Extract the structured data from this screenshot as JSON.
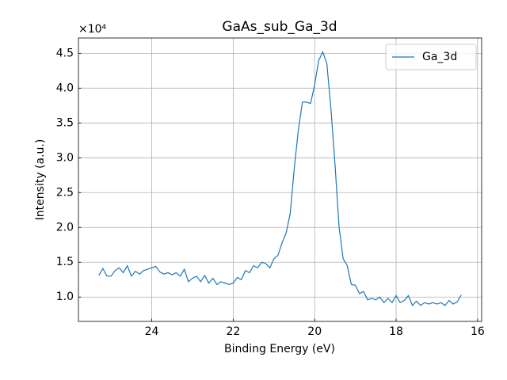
{
  "chart_data": {
    "type": "line",
    "title": "GaAs_sub_Ga_3d",
    "xlabel": "Binding Energy (eV)",
    "ylabel": "Intensity (a.u.)",
    "y_offset_label": "×10⁴",
    "x": [
      25.3,
      25.2,
      25.1,
      25.0,
      24.9,
      24.8,
      24.7,
      24.6,
      24.5,
      24.4,
      24.3,
      24.2,
      24.1,
      24.0,
      23.9,
      23.8,
      23.7,
      23.6,
      23.5,
      23.4,
      23.3,
      23.2,
      23.1,
      23.0,
      22.9,
      22.8,
      22.7,
      22.6,
      22.5,
      22.4,
      22.3,
      22.2,
      22.1,
      22.0,
      21.9,
      21.8,
      21.7,
      21.6,
      21.5,
      21.4,
      21.3,
      21.2,
      21.1,
      21.0,
      20.9,
      20.8,
      20.7,
      20.6,
      20.5,
      20.4,
      20.3,
      20.2,
      20.1,
      20.0,
      19.9,
      19.8,
      19.7,
      19.6,
      19.5,
      19.4,
      19.3,
      19.2,
      19.1,
      19.0,
      18.9,
      18.8,
      18.7,
      18.6,
      18.5,
      18.4,
      18.3,
      18.2,
      18.1,
      18.0,
      17.9,
      17.8,
      17.7,
      17.6,
      17.5,
      17.4,
      17.3,
      17.2,
      17.1,
      17.0,
      16.9,
      16.8,
      16.7,
      16.6,
      16.5,
      16.4
    ],
    "series": [
      {
        "name": "Ga_3d",
        "color": "#1f77b4",
        "values": [
          1.31,
          1.41,
          1.3,
          1.3,
          1.38,
          1.42,
          1.35,
          1.45,
          1.3,
          1.37,
          1.33,
          1.38,
          1.4,
          1.42,
          1.44,
          1.36,
          1.33,
          1.35,
          1.32,
          1.35,
          1.3,
          1.4,
          1.22,
          1.27,
          1.3,
          1.22,
          1.31,
          1.2,
          1.27,
          1.18,
          1.22,
          1.2,
          1.18,
          1.2,
          1.28,
          1.25,
          1.38,
          1.35,
          1.45,
          1.42,
          1.5,
          1.48,
          1.42,
          1.55,
          1.6,
          1.78,
          1.92,
          2.2,
          2.85,
          3.4,
          3.8,
          3.8,
          3.78,
          4.05,
          4.4,
          4.52,
          4.35,
          3.7,
          2.9,
          2.0,
          1.55,
          1.45,
          1.18,
          1.17,
          1.05,
          1.08,
          0.96,
          0.98,
          0.96,
          1.0,
          0.92,
          0.98,
          0.92,
          1.02,
          0.92,
          0.95,
          1.02,
          0.88,
          0.94,
          0.88,
          0.92,
          0.9,
          0.92,
          0.9,
          0.92,
          0.88,
          0.95,
          0.9,
          0.93,
          1.03
        ]
      }
    ],
    "xlim": [
      25.8,
      15.9
    ],
    "ylim": [
      0.65,
      4.72
    ],
    "xticks": [
      24,
      22,
      20,
      18,
      16
    ],
    "yticks": [
      {
        "value": 1,
        "label": "1.0"
      },
      {
        "value": 1.5,
        "label": "1.5"
      },
      {
        "value": 2,
        "label": "2.0"
      },
      {
        "value": 2.5,
        "label": "2.5"
      },
      {
        "value": 3,
        "label": "3.0"
      },
      {
        "value": 3.5,
        "label": "3.5"
      },
      {
        "value": 4,
        "label": "4.0"
      },
      {
        "value": 4.5,
        "label": "4.5"
      }
    ],
    "grid": true,
    "legend": "upper right"
  }
}
